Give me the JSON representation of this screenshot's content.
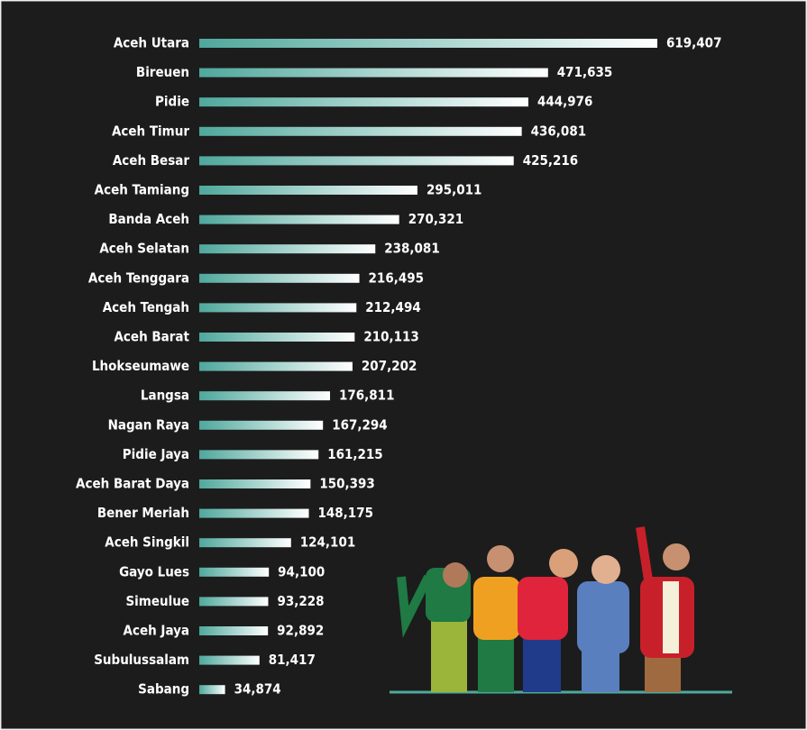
{
  "chart_data": {
    "type": "bar",
    "orientation": "horizontal",
    "color": "#4fa89c",
    "categories": [
      "Aceh Utara",
      "Bireuen",
      "Pidie",
      "Aceh Timur",
      "Aceh Besar",
      "Aceh Tamiang",
      "Banda Aceh",
      "Aceh Selatan",
      "Aceh Tenggara",
      "Aceh Tengah",
      "Aceh Barat",
      "Lhokseumawe",
      "Langsa",
      "Nagan Raya",
      "Pidie Jaya",
      "Aceh Barat Daya",
      "Bener Meriah",
      "Aceh Singkil",
      "Gayo Lues",
      "Simeulue",
      "Aceh Jaya",
      "Subulussalam",
      "Sabang"
    ],
    "values": [
      619407,
      471635,
      444976,
      436081,
      425216,
      295011,
      270321,
      238081,
      216495,
      212494,
      210113,
      207202,
      176811,
      167294,
      161215,
      150393,
      148175,
      124101,
      94100,
      93228,
      92892,
      81417,
      34874
    ],
    "value_labels": [
      "619,407",
      "471,635",
      "444,976",
      "436,081",
      "425,216",
      "295,011",
      "270,321",
      "238,081",
      "216,495",
      "212,494",
      "210,113",
      "207,202",
      "176,811",
      "167,294",
      "161,215",
      "150,393",
      "148,175",
      "124,101",
      "94,100",
      "93,228",
      "92,892",
      "81,417",
      "34,874"
    ]
  }
}
